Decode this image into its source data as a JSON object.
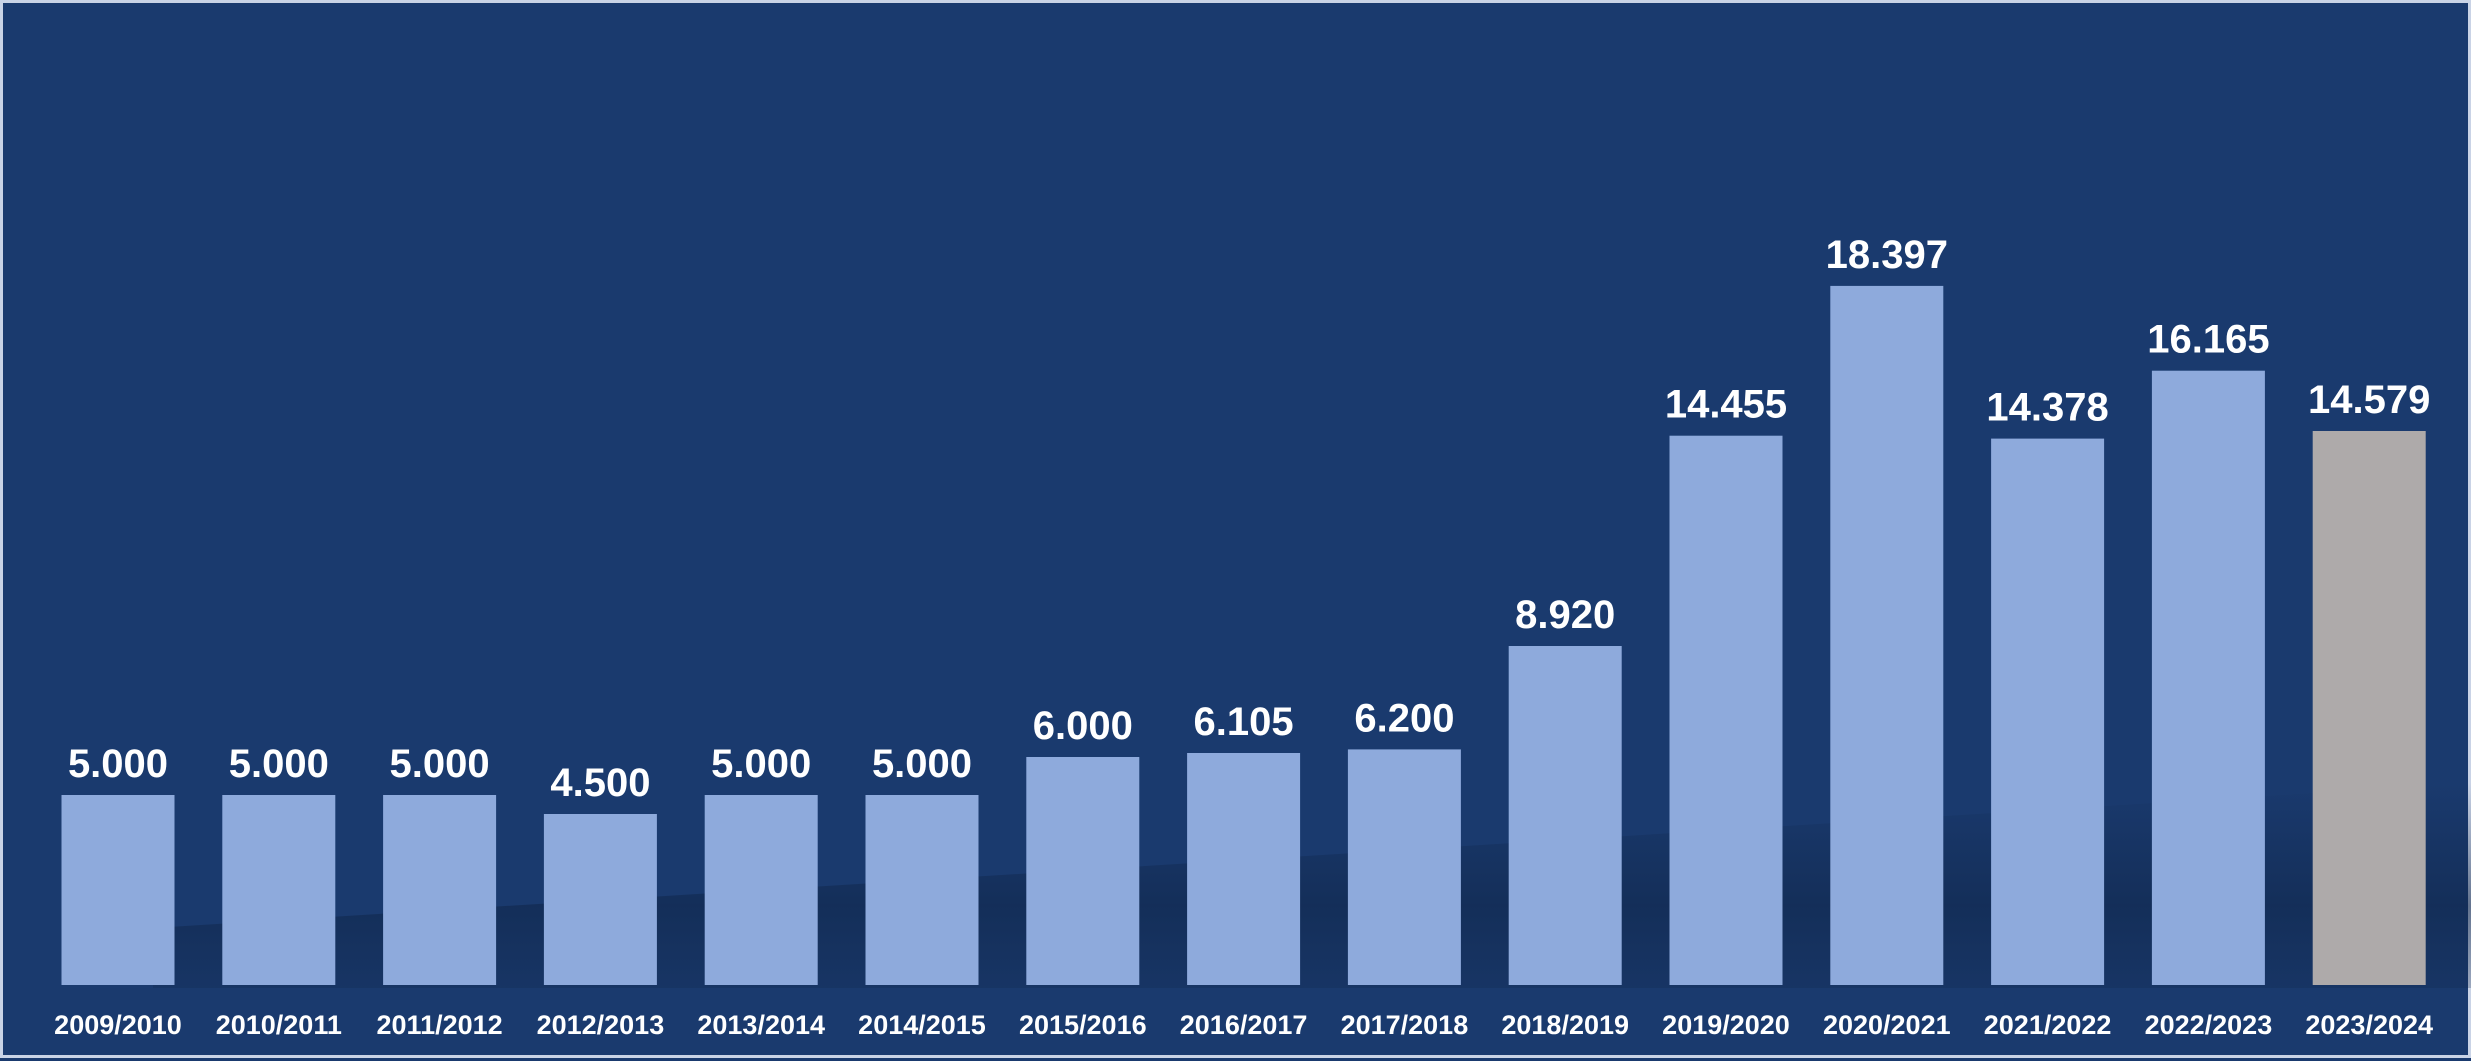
{
  "chart_data": {
    "type": "bar",
    "title": "",
    "xlabel": "",
    "ylabel": "",
    "ylim": [
      0,
      20000
    ],
    "grid": false,
    "legend": "none",
    "categories": [
      "2009/2010",
      "2010/2011",
      "2011/2012",
      "2012/2013",
      "2013/2014",
      "2014/2015",
      "2015/2016",
      "2016/2017",
      "2017/2018",
      "2018/2019",
      "2019/2020",
      "2020/2021",
      "2021/2022",
      "2022/2023",
      "2023/2024"
    ],
    "values": [
      5000,
      5000,
      5000,
      4500,
      5000,
      5000,
      6000,
      6105,
      6200,
      8920,
      14455,
      18397,
      14378,
      16165,
      14579
    ],
    "data_labels": [
      "5.000",
      "5.000",
      "5.000",
      "4.500",
      "5.000",
      "5.000",
      "6.000",
      "6.105",
      "6.200",
      "8.920",
      "14.455",
      "18.397",
      "14.378",
      "16.165",
      "14.579"
    ],
    "highlight_index": 14
  },
  "colors": {
    "background": "#1a3a6e",
    "bar": "#8eaadc",
    "highlight_bar": "#aeaaaa",
    "text": "#ffffff",
    "border": "#c9d3e6"
  }
}
